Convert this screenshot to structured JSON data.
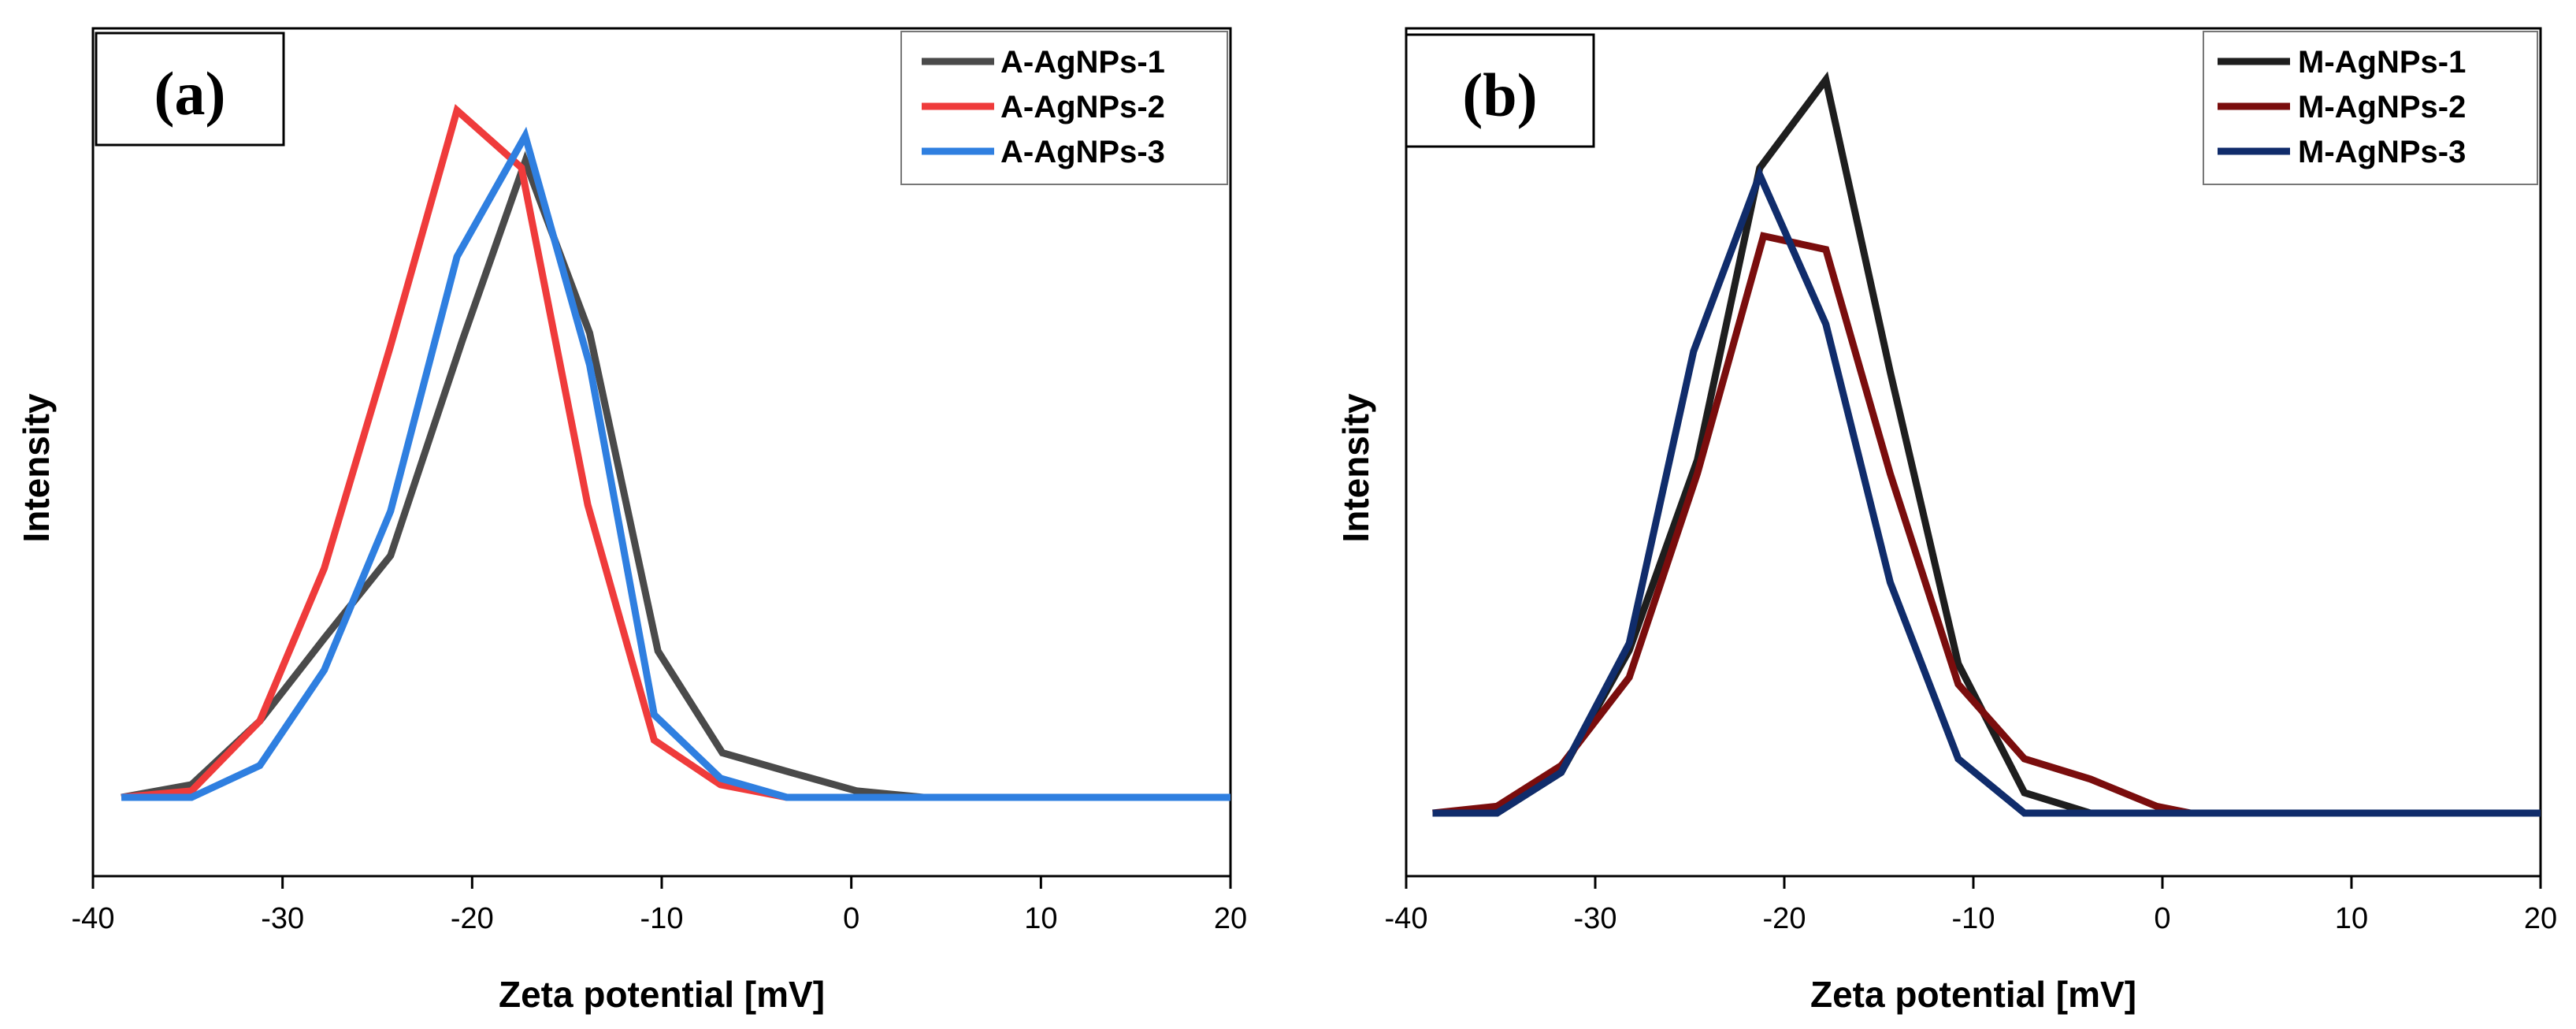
{
  "chart_data": [
    {
      "type": "line",
      "panel_label": "(a)",
      "xlabel": "Zeta potential [mV]",
      "ylabel": "Intensity",
      "xlim": [
        -40,
        20
      ],
      "ylim": [
        0,
        1.1
      ],
      "xticks": [
        -40,
        -30,
        -20,
        -10,
        0,
        10,
        20
      ],
      "xtick_labels": [
        "-40",
        "-30",
        "-20",
        "-10",
        "0",
        "10",
        "20"
      ],
      "legend_position": "top-right",
      "series": [
        {
          "name": "A-AgNPs-1",
          "color": "#4a4a4a",
          "points": [
            [
              -38.5,
              0
            ],
            [
              -34.8,
              0.02
            ],
            [
              -31.2,
              0.12
            ],
            [
              -27.8,
              0.25
            ],
            [
              -24.3,
              0.38
            ],
            [
              -20.5,
              0.72
            ],
            [
              -17.2,
              1.0
            ],
            [
              -13.8,
              0.73
            ],
            [
              -10.2,
              0.23
            ],
            [
              -6.8,
              0.07
            ],
            [
              -3.3,
              0.04
            ],
            [
              0.3,
              0.01
            ],
            [
              3.8,
              0
            ],
            [
              20,
              0
            ]
          ]
        },
        {
          "name": "A-AgNPs-2",
          "color": "#ef3b3b",
          "points": [
            [
              -38.5,
              0
            ],
            [
              -34.8,
              0.01
            ],
            [
              -31.2,
              0.12
            ],
            [
              -27.8,
              0.36
            ],
            [
              -24.3,
              0.71
            ],
            [
              -20.8,
              1.08
            ],
            [
              -17.4,
              0.99
            ],
            [
              -13.9,
              0.46
            ],
            [
              -10.4,
              0.09
            ],
            [
              -6.9,
              0.02
            ],
            [
              -3.4,
              0
            ],
            [
              20,
              0
            ]
          ]
        },
        {
          "name": "A-AgNPs-3",
          "color": "#2f7fe0",
          "points": [
            [
              -38.5,
              0
            ],
            [
              -34.8,
              0
            ],
            [
              -31.2,
              0.05
            ],
            [
              -27.8,
              0.2
            ],
            [
              -24.3,
              0.45
            ],
            [
              -20.8,
              0.85
            ],
            [
              -17.2,
              1.04
            ],
            [
              -13.8,
              0.68
            ],
            [
              -10.4,
              0.13
            ],
            [
              -6.9,
              0.03
            ],
            [
              -3.4,
              0
            ],
            [
              20,
              0
            ]
          ]
        }
      ]
    },
    {
      "type": "line",
      "panel_label": "(b)",
      "xlabel": "Zeta potential [mV]",
      "ylabel": "Intensity",
      "xlim": [
        -40,
        20
      ],
      "ylim": [
        0,
        1.1
      ],
      "xticks": [
        -40,
        -30,
        -20,
        -10,
        0,
        10,
        20
      ],
      "xtick_labels": [
        "-40",
        "-30",
        "-20",
        "-10",
        "0",
        "10",
        "20"
      ],
      "legend_position": "top-right",
      "series": [
        {
          "name": "M-AgNPs-1",
          "color": "#1e1e1e",
          "points": [
            [
              -38.6,
              0
            ],
            [
              -35.2,
              0
            ],
            [
              -31.8,
              0.06
            ],
            [
              -28.2,
              0.24
            ],
            [
              -24.6,
              0.52
            ],
            [
              -21.3,
              0.95
            ],
            [
              -17.8,
              1.08
            ],
            [
              -14.4,
              0.65
            ],
            [
              -10.8,
              0.22
            ],
            [
              -7.3,
              0.03
            ],
            [
              -3.8,
              0
            ],
            [
              20,
              0
            ]
          ]
        },
        {
          "name": "M-AgNPs-2",
          "color": "#7a0d0d",
          "points": [
            [
              -38.6,
              0
            ],
            [
              -35.2,
              0.01
            ],
            [
              -31.8,
              0.07
            ],
            [
              -28.2,
              0.2
            ],
            [
              -24.6,
              0.5
            ],
            [
              -21.1,
              0.85
            ],
            [
              -17.8,
              0.83
            ],
            [
              -14.4,
              0.5
            ],
            [
              -10.8,
              0.19
            ],
            [
              -7.3,
              0.08
            ],
            [
              -3.8,
              0.05
            ],
            [
              -0.3,
              0.01
            ],
            [
              1.5,
              0
            ],
            [
              20,
              0
            ]
          ]
        },
        {
          "name": "M-AgNPs-3",
          "color": "#102c6b",
          "points": [
            [
              -38.6,
              0
            ],
            [
              -35.2,
              0
            ],
            [
              -31.8,
              0.06
            ],
            [
              -28.2,
              0.25
            ],
            [
              -24.8,
              0.68
            ],
            [
              -21.3,
              0.94
            ],
            [
              -17.8,
              0.72
            ],
            [
              -14.4,
              0.34
            ],
            [
              -10.8,
              0.08
            ],
            [
              -7.3,
              0
            ],
            [
              20,
              0
            ]
          ]
        }
      ]
    }
  ]
}
